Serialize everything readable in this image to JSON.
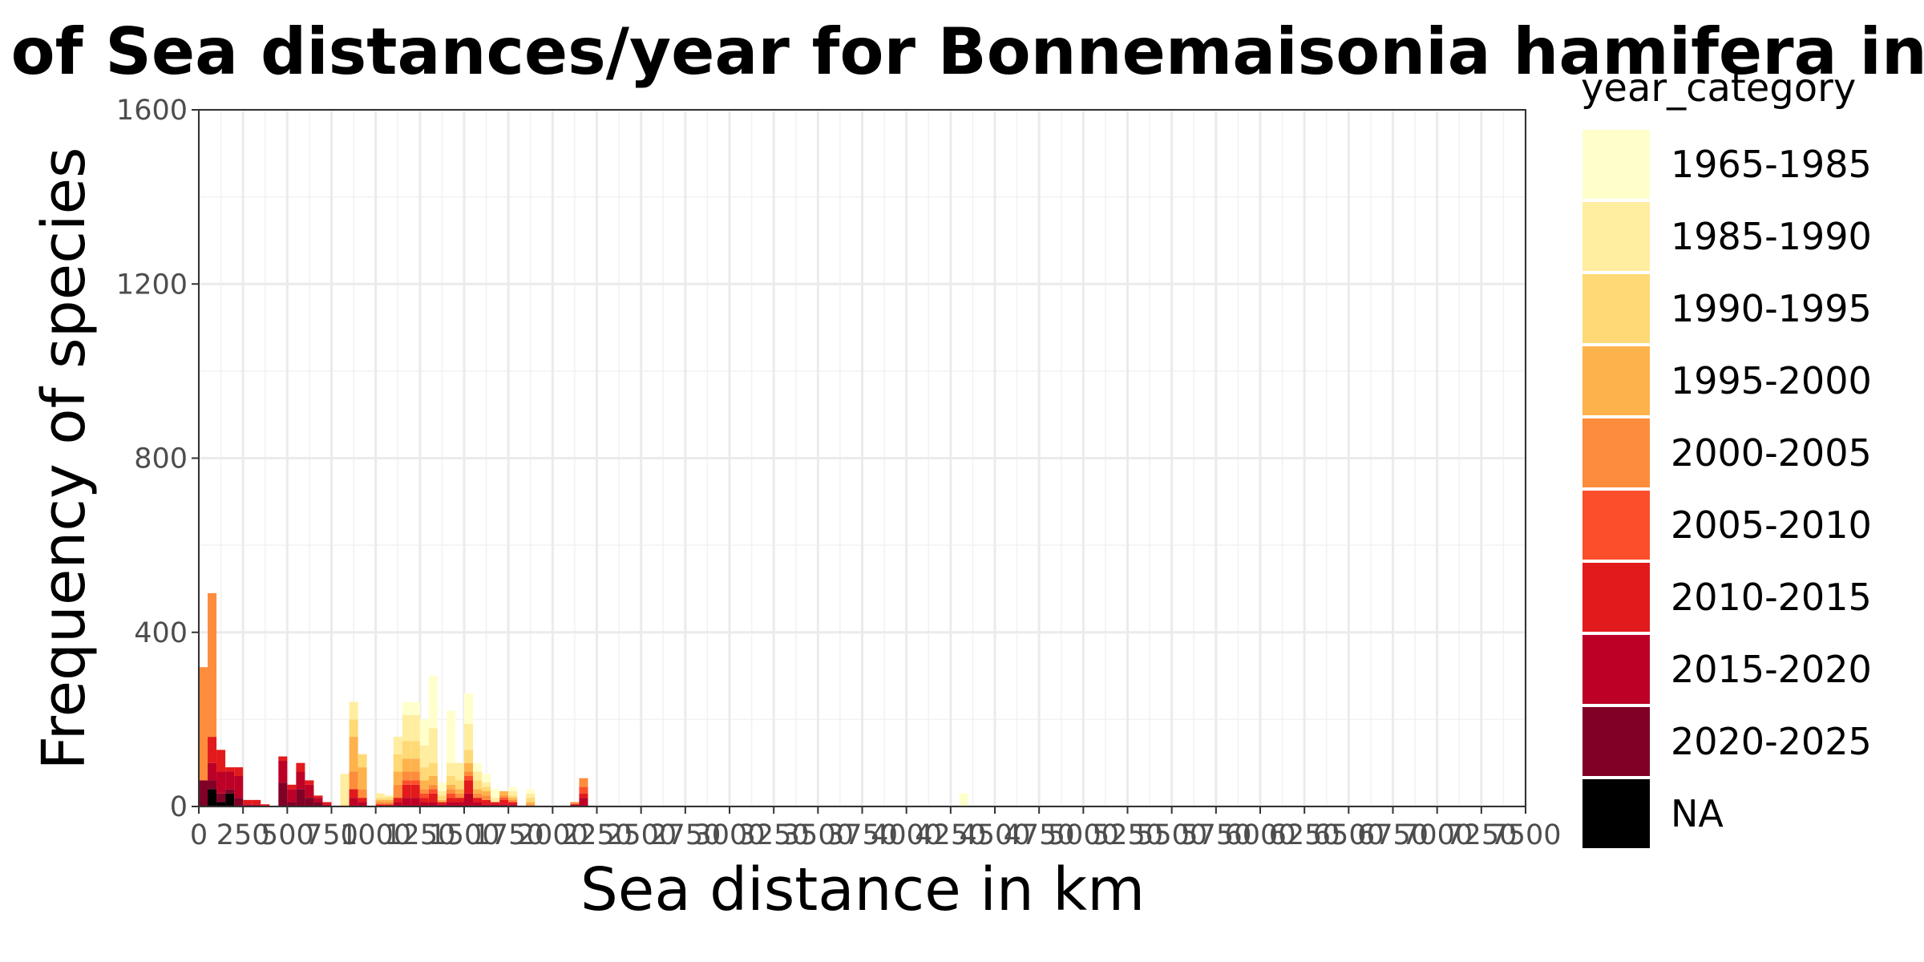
{
  "chart_data": {
    "type": "bar",
    "stacked": true,
    "title": "cies of Sea distances/year for Bonnemaisonia hamifera in Lae",
    "xlabel": "Sea distance in km",
    "ylabel": "Frequency of species",
    "xlim": [
      0,
      7500
    ],
    "ylim": [
      0,
      1600
    ],
    "x_ticks": [
      0,
      250,
      500,
      750,
      1000,
      1250,
      1500,
      1750,
      2000,
      2250,
      2500,
      2750,
      3000,
      3250,
      3500,
      3750,
      4000,
      4250,
      4500,
      4750,
      5000,
      5250,
      5500,
      5750,
      6000,
      6250,
      6500,
      6750,
      7000,
      7250,
      7500
    ],
    "y_ticks": [
      0,
      400,
      800,
      1200,
      1600
    ],
    "grid": true,
    "bin_width": 50,
    "legend": {
      "title": "year_category",
      "position": "right",
      "entries": [
        {
          "label": "1965-1985",
          "color": "#FFFFCC"
        },
        {
          "label": "1985-1990",
          "color": "#FFEDA0"
        },
        {
          "label": "1990-1995",
          "color": "#FED976"
        },
        {
          "label": "1995-2000",
          "color": "#FEB24C"
        },
        {
          "label": "2000-2005",
          "color": "#FD8D3C"
        },
        {
          "label": "2005-2010",
          "color": "#FC4E2A"
        },
        {
          "label": "2010-2015",
          "color": "#E31A1C"
        },
        {
          "label": "2015-2020",
          "color": "#BD0026"
        },
        {
          "label": "2020-2025",
          "color": "#800026"
        },
        {
          "label": "NA",
          "color": "#000000"
        }
      ]
    },
    "bins": [
      {
        "x": 0,
        "stack": [
          0,
          0,
          0,
          0,
          260,
          0,
          0,
          0,
          60,
          0
        ]
      },
      {
        "x": 50,
        "stack": [
          0,
          0,
          0,
          0,
          330,
          0,
          60,
          40,
          20,
          40
        ]
      },
      {
        "x": 100,
        "stack": [
          0,
          0,
          0,
          0,
          0,
          0,
          50,
          50,
          20,
          10
        ]
      },
      {
        "x": 150,
        "stack": [
          0,
          0,
          0,
          0,
          0,
          0,
          10,
          40,
          10,
          30
        ]
      },
      {
        "x": 200,
        "stack": [
          0,
          0,
          0,
          0,
          0,
          0,
          20,
          50,
          20,
          0
        ]
      },
      {
        "x": 250,
        "stack": [
          0,
          0,
          0,
          0,
          0,
          0,
          10,
          5,
          0,
          0
        ]
      },
      {
        "x": 300,
        "stack": [
          0,
          0,
          0,
          0,
          0,
          0,
          10,
          5,
          0,
          0
        ]
      },
      {
        "x": 350,
        "stack": [
          0,
          0,
          0,
          0,
          0,
          0,
          5,
          0,
          0,
          0
        ]
      },
      {
        "x": 450,
        "stack": [
          0,
          0,
          0,
          0,
          0,
          0,
          10,
          50,
          55,
          0
        ]
      },
      {
        "x": 500,
        "stack": [
          0,
          0,
          0,
          0,
          0,
          0,
          10,
          30,
          10,
          0
        ]
      },
      {
        "x": 550,
        "stack": [
          0,
          0,
          0,
          0,
          0,
          0,
          20,
          40,
          40,
          0
        ]
      },
      {
        "x": 600,
        "stack": [
          0,
          0,
          0,
          0,
          0,
          0,
          10,
          30,
          20,
          0
        ]
      },
      {
        "x": 650,
        "stack": [
          0,
          0,
          0,
          0,
          0,
          0,
          5,
          10,
          10,
          0
        ]
      },
      {
        "x": 700,
        "stack": [
          0,
          0,
          0,
          0,
          0,
          0,
          5,
          5,
          0,
          0
        ]
      },
      {
        "x": 800,
        "stack": [
          0,
          70,
          5,
          0,
          0,
          0,
          0,
          0,
          0,
          0
        ]
      },
      {
        "x": 850,
        "stack": [
          0,
          40,
          40,
          80,
          40,
          0,
          20,
          20,
          0,
          0
        ]
      },
      {
        "x": 900,
        "stack": [
          0,
          0,
          30,
          50,
          20,
          0,
          10,
          10,
          0,
          0
        ]
      },
      {
        "x": 950,
        "stack": [
          0,
          0,
          0,
          0,
          0,
          0,
          0,
          0,
          0,
          0
        ]
      },
      {
        "x": 1000,
        "stack": [
          0,
          10,
          5,
          5,
          5,
          0,
          5,
          0,
          0,
          0
        ]
      },
      {
        "x": 1050,
        "stack": [
          0,
          5,
          5,
          5,
          5,
          0,
          5,
          0,
          0,
          0
        ]
      },
      {
        "x": 1100,
        "stack": [
          0,
          40,
          40,
          30,
          30,
          0,
          10,
          10,
          0,
          0
        ]
      },
      {
        "x": 1150,
        "stack": [
          30,
          60,
          40,
          30,
          20,
          10,
          30,
          20,
          0,
          0
        ]
      },
      {
        "x": 1200,
        "stack": [
          30,
          60,
          40,
          30,
          20,
          10,
          30,
          20,
          0,
          0
        ]
      },
      {
        "x": 1250,
        "stack": [
          60,
          50,
          30,
          20,
          10,
          10,
          10,
          10,
          0,
          0
        ]
      },
      {
        "x": 1300,
        "stack": [
          120,
          80,
          30,
          20,
          10,
          10,
          20,
          10,
          0,
          0
        ]
      },
      {
        "x": 1350,
        "stack": [
          20,
          10,
          10,
          5,
          0,
          0,
          5,
          5,
          0,
          0
        ]
      },
      {
        "x": 1400,
        "stack": [
          120,
          30,
          20,
          10,
          10,
          10,
          10,
          10,
          0,
          0
        ]
      },
      {
        "x": 1450,
        "stack": [
          0,
          40,
          20,
          10,
          10,
          0,
          10,
          10,
          0,
          0
        ]
      },
      {
        "x": 1500,
        "stack": [
          70,
          60,
          30,
          20,
          10,
          10,
          30,
          30,
          0,
          0
        ]
      },
      {
        "x": 1550,
        "stack": [
          20,
          20,
          20,
          10,
          10,
          0,
          10,
          10,
          0,
          0
        ]
      },
      {
        "x": 1600,
        "stack": [
          20,
          10,
          10,
          10,
          10,
          0,
          10,
          5,
          0,
          0
        ]
      },
      {
        "x": 1650,
        "stack": [
          20,
          10,
          0,
          0,
          0,
          0,
          5,
          5,
          0,
          0
        ]
      },
      {
        "x": 1700,
        "stack": [
          0,
          0,
          0,
          10,
          5,
          5,
          10,
          5,
          0,
          0
        ]
      },
      {
        "x": 1750,
        "stack": [
          10,
          10,
          5,
          5,
          5,
          0,
          5,
          5,
          0,
          0
        ]
      },
      {
        "x": 1850,
        "stack": [
          10,
          10,
          10,
          5,
          5,
          0,
          0,
          0,
          0,
          0
        ]
      },
      {
        "x": 2100,
        "stack": [
          0,
          0,
          0,
          0,
          5,
          0,
          0,
          5,
          0,
          0
        ]
      },
      {
        "x": 2150,
        "stack": [
          0,
          0,
          0,
          0,
          20,
          15,
          10,
          20,
          0,
          0
        ]
      },
      {
        "x": 4300,
        "stack": [
          30,
          0,
          0,
          0,
          0,
          0,
          0,
          0,
          0,
          0
        ]
      }
    ]
  }
}
